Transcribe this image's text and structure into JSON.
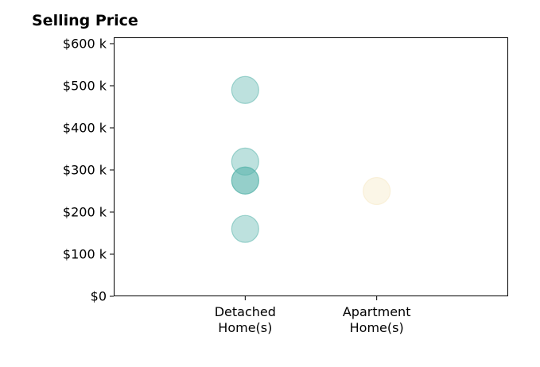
{
  "chart_data": {
    "type": "scatter",
    "title": "Selling Price",
    "xlabel": "",
    "ylabel": "",
    "categories": [
      "Detached\nHome(s)",
      "Apartment\nHome(s)"
    ],
    "xlim": [
      -1,
      2
    ],
    "ylim": [
      0,
      615000
    ],
    "yticks": [
      0,
      100000,
      200000,
      300000,
      400000,
      500000,
      600000
    ],
    "ytick_labels": [
      "$0",
      "$100 k",
      "$200 k",
      "$300 k",
      "$400 k",
      "$500 k",
      "$600 k"
    ],
    "grid": false,
    "series": [
      {
        "category": "Detached\nHome(s)",
        "color": "#5ab4ac",
        "values": [
          490000,
          320000,
          275000,
          275000,
          160000
        ]
      },
      {
        "category": "Apartment\nHome(s)",
        "color": "#f6e8c3",
        "values": [
          250000
        ]
      }
    ]
  }
}
